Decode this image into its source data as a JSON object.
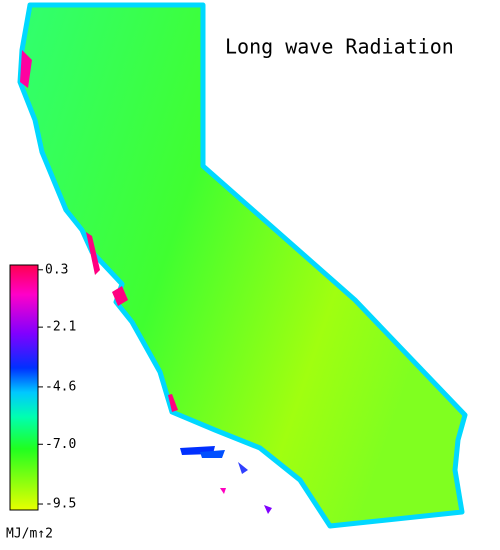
{
  "title": "Long wave Radiation",
  "colorbar": {
    "clim": [
      -9.75,
      0.5
    ],
    "ticks": [
      0.3,
      -2.1,
      -4.6,
      {
        "value": -7,
        "label": "-7.0"
      },
      -9.5
    ],
    "unit": "MJ/m↑2"
  }
}
